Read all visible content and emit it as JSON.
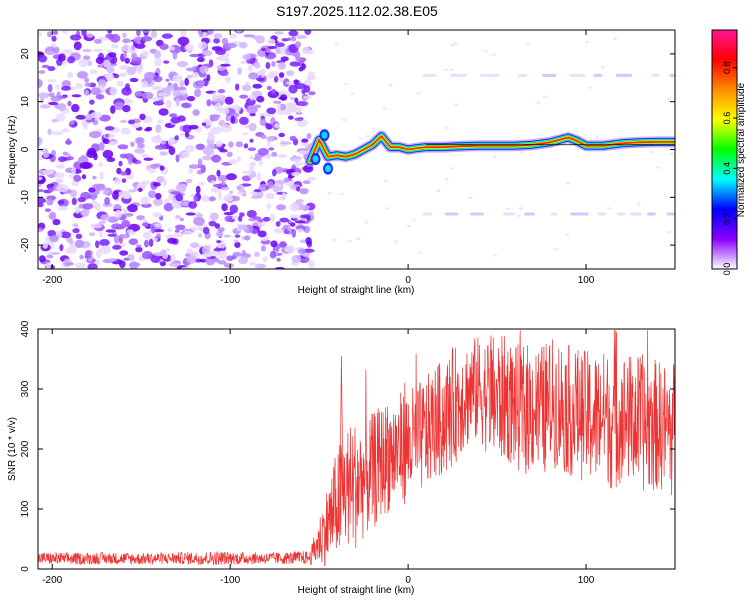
{
  "title": "S197.2025.112.02.38.E05",
  "chart_data": [
    {
      "type": "heatmap",
      "xlabel": "Height of straight line (km)",
      "ylabel": "Frequency (Hz)",
      "xlim": [
        -208,
        150
      ],
      "ylim": [
        -25,
        25
      ],
      "x_ticks": [
        -200,
        -100,
        0,
        100
      ],
      "y_ticks": [
        -20,
        -10,
        0,
        10,
        20
      ],
      "colorbar": {
        "label": "Normalized spectral amplitude",
        "range": [
          0,
          0.95
        ],
        "ticks": [
          0.0,
          0.2,
          0.4,
          0.6,
          0.8
        ],
        "tick_labels": [
          "0.0",
          "0.2",
          "0.4",
          "0.6",
          "0.8"
        ],
        "colors": [
          "#ffffff",
          "#8b00ff",
          "#0000ff",
          "#00ffff",
          "#00ff00",
          "#ffff00",
          "#ff8c00",
          "#ff0000",
          "#ff1493"
        ]
      },
      "noise_region": {
        "x_range": [
          -208,
          -54
        ],
        "freq_range": [
          -25,
          25
        ]
      },
      "signal_ridge": {
        "x": [
          -55,
          -50,
          -45,
          -40,
          -35,
          -30,
          -25,
          -20,
          -15,
          -10,
          -5,
          0,
          5,
          10,
          20,
          30,
          40,
          50,
          60,
          70,
          80,
          90,
          95,
          100,
          110,
          120,
          130,
          140,
          150
        ],
        "freq": [
          -2.5,
          2.0,
          -1.5,
          -1.2,
          -1.5,
          -1.0,
          0.0,
          1.0,
          2.8,
          0.5,
          0.5,
          0.0,
          0.3,
          0.5,
          0.5,
          0.7,
          0.8,
          0.8,
          0.8,
          1.0,
          1.5,
          2.5,
          1.8,
          0.8,
          0.8,
          1.3,
          1.5,
          1.6,
          1.6
        ]
      },
      "harmonic_traces": [
        {
          "x_range": [
            8,
            150
          ],
          "freq": 15.5
        },
        {
          "x_range": [
            8,
            150
          ],
          "freq": -13.5
        }
      ]
    },
    {
      "type": "line",
      "xlabel": "Height of straight line (km)",
      "ylabel": "SNR (10 * v/v)",
      "xlim": [
        -208,
        150
      ],
      "ylim": [
        0,
        400
      ],
      "x_ticks": [
        -200,
        -100,
        0,
        100
      ],
      "y_ticks": [
        0,
        100,
        200,
        300,
        400
      ],
      "line_color": "#ee3333",
      "series": [
        {
          "x": [
            -208,
            -190,
            -170,
            -150,
            -130,
            -110,
            -90,
            -70,
            -55,
            -45,
            -40,
            -38,
            -35,
            -30,
            -25,
            -20,
            -15,
            -10,
            -5,
            0,
            5,
            10,
            15,
            20,
            25,
            30,
            35,
            40,
            45,
            50,
            55,
            60,
            65,
            70,
            75,
            80,
            85,
            90,
            95,
            100,
            105,
            110,
            115,
            120,
            125,
            130,
            135,
            140,
            145,
            150
          ],
          "values": [
            18,
            17,
            18,
            17,
            18,
            18,
            18,
            18,
            19,
            75,
            110,
            120,
            135,
            140,
            150,
            160,
            180,
            190,
            200,
            205,
            215,
            225,
            245,
            250,
            270,
            285,
            295,
            300,
            290,
            280,
            285,
            270,
            265,
            270,
            260,
            280,
            275,
            265,
            260,
            255,
            250,
            260,
            245,
            255,
            250,
            245,
            240,
            240,
            235,
            230
          ],
          "spread": [
            10,
            10,
            10,
            10,
            10,
            12,
            10,
            10,
            12,
            70,
            90,
            100,
            105,
            110,
            100,
            100,
            95,
            95,
            95,
            95,
            95,
            95,
            95,
            100,
            100,
            95,
            90,
            90,
            100,
            110,
            105,
            105,
            110,
            110,
            115,
            105,
            115,
            110,
            110,
            110,
            115,
            105,
            120,
            110,
            110,
            115,
            115,
            110,
            110,
            120
          ]
        }
      ]
    }
  ]
}
